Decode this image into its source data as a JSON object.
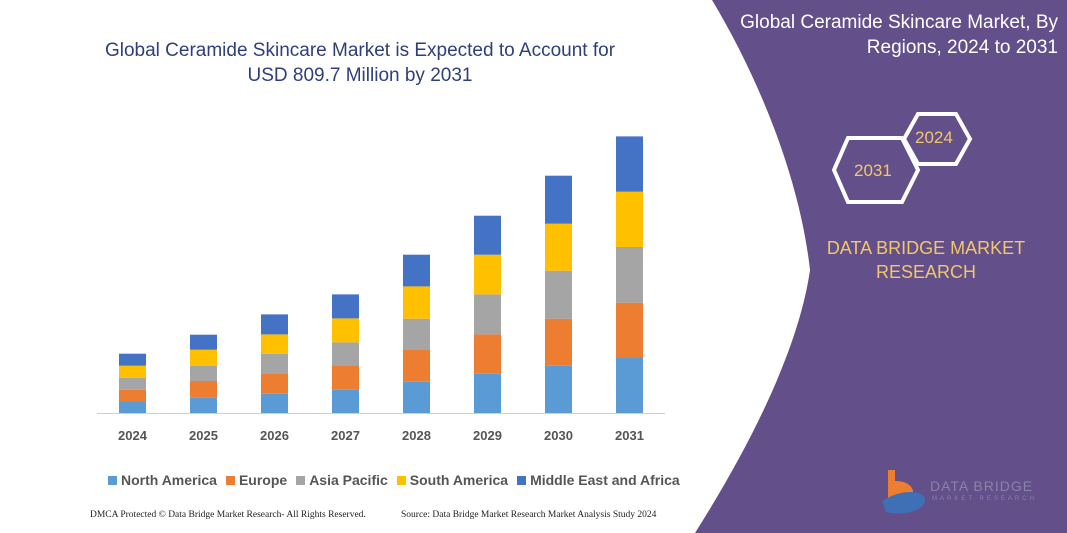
{
  "panel": {
    "title": "Global Ceramide Skincare Market, By Regions, 2024 to 2031",
    "hex_years": [
      "2031",
      "2024"
    ],
    "brand": "DATA BRIDGE MARKET RESEARCH",
    "logo_text": "DATA BRIDGE",
    "logo_sub": "MARKET RESEARCH",
    "background_color": "#634f8a",
    "accent_color": "#f2c76a"
  },
  "footer": {
    "left": "DMCA Protected © Data Bridge Market Research- All Rights Reserved.",
    "right": "Source: Data Bridge Market Research Market Analysis Study 2024"
  },
  "chart_data": {
    "type": "bar",
    "stacked": true,
    "title": "Global Ceramide Skincare Market is Expected to Account for USD 809.7 Million by 2031",
    "xlabel": "",
    "ylabel": "",
    "y_axis_shown": false,
    "grid": false,
    "legend_position": "bottom",
    "ylim": [
      0,
      280
    ],
    "categories": [
      "2024",
      "2025",
      "2026",
      "2027",
      "2028",
      "2029",
      "2030",
      "2031"
    ],
    "series": [
      {
        "name": "North America",
        "color": "#5b9bd5",
        "values": [
          11,
          15.7,
          19.3,
          23.3,
          31.3,
          39.3,
          47.3,
          55
        ]
      },
      {
        "name": "Europe",
        "color": "#ed7d31",
        "values": [
          12.3,
          16.3,
          20.3,
          24.3,
          32.3,
          39.3,
          47,
          55.3
        ]
      },
      {
        "name": "Asia Pacific",
        "color": "#a5a5a5",
        "values": [
          12,
          15.3,
          19.7,
          23,
          30.7,
          40,
          48,
          55.7
        ]
      },
      {
        "name": "South America",
        "color": "#ffc000",
        "values": [
          12,
          16,
          19.3,
          24,
          32.3,
          39.7,
          47,
          55.3
        ]
      },
      {
        "name": "Middle East and Africa",
        "color": "#4472c4",
        "values": [
          12,
          15,
          20,
          24,
          31.7,
          39,
          48,
          55.3
        ]
      }
    ]
  }
}
